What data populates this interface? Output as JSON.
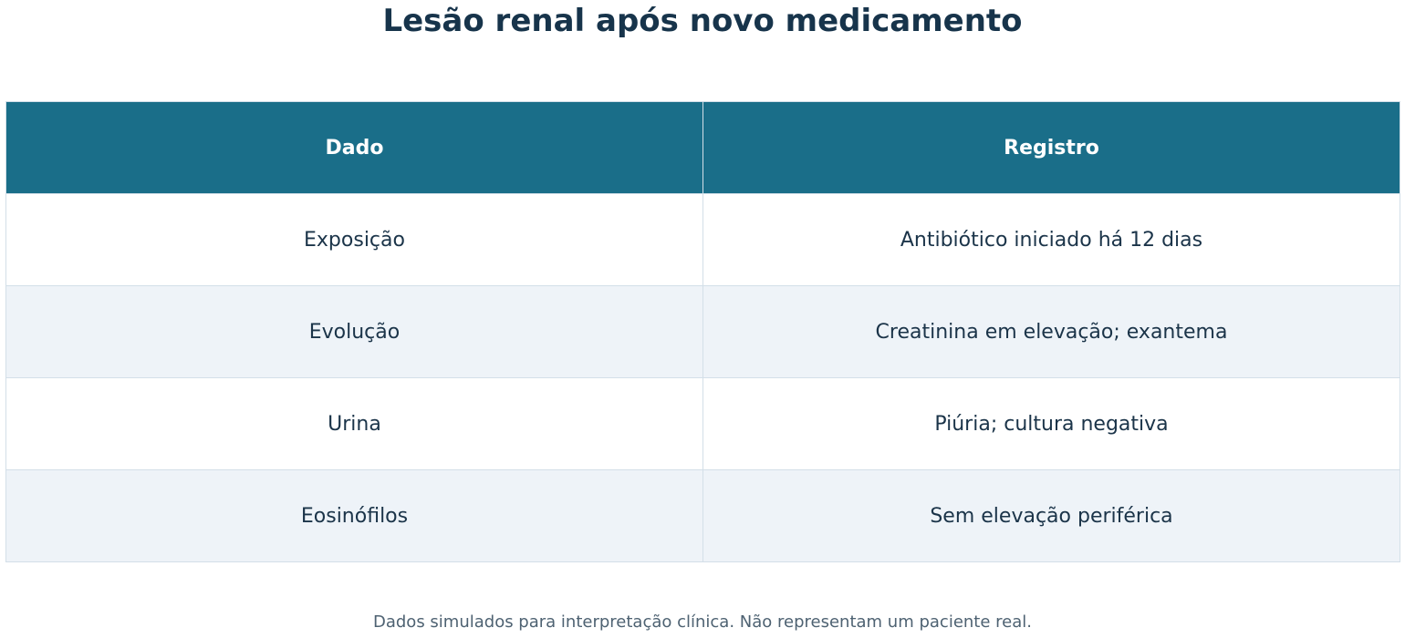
{
  "title": "Lesão renal após novo medicamento",
  "table": {
    "header": [
      "Dado",
      "Registro"
    ],
    "rows": [
      [
        "Exposição",
        "Antibiótico iniciado há 12 dias"
      ],
      [
        "Evolução",
        "Creatinina em elevação; exantema"
      ],
      [
        "Urina",
        "Piúria; cultura negativa"
      ],
      [
        "Eosinófilos",
        "Sem elevação periférica"
      ]
    ]
  },
  "footnote": "Dados simulados para interpretação clínica. Não representam um paciente real."
}
